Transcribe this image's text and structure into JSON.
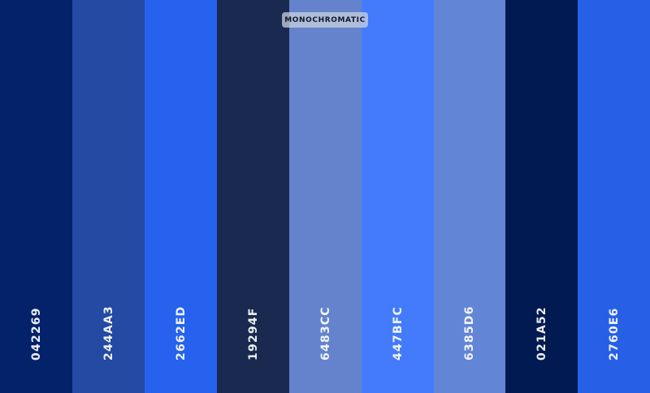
{
  "badge": {
    "label": "MONOCHROMATIC"
  },
  "swatches": [
    {
      "hex": "042269",
      "color": "#042269"
    },
    {
      "hex": "244AA3",
      "color": "#244AA3"
    },
    {
      "hex": "2662ED",
      "color": "#2662ED"
    },
    {
      "hex": "19294F",
      "color": "#19294F"
    },
    {
      "hex": "6483CC",
      "color": "#6483CC"
    },
    {
      "hex": "447BFC",
      "color": "#447BFC"
    },
    {
      "hex": "6385D6",
      "color": "#6385D6"
    },
    {
      "hex": "021A52",
      "color": "#021A52"
    },
    {
      "hex": "2760E6",
      "color": "#2760E6"
    }
  ]
}
